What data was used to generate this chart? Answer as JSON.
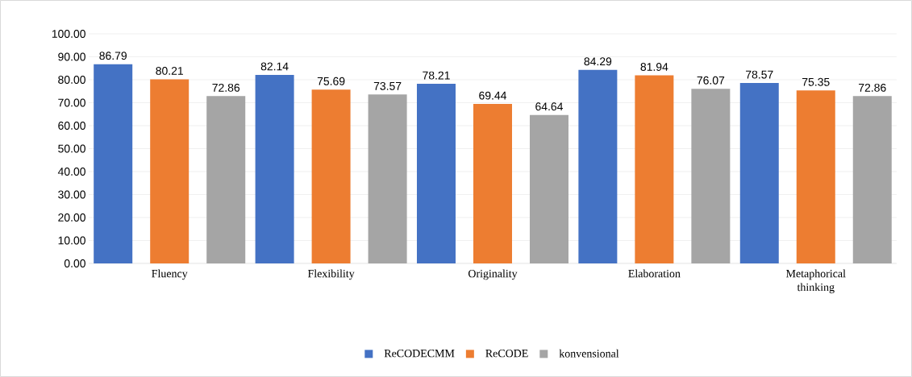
{
  "chart_data": {
    "type": "bar",
    "categories": [
      "Fluency",
      "Flexibility",
      "Originality",
      "Elaboration",
      "Metaphorical thinking"
    ],
    "series": [
      {
        "name": "ReCODECMM",
        "color": "#4472c4",
        "values": [
          86.79,
          82.14,
          78.21,
          84.29,
          78.57
        ]
      },
      {
        "name": "ReCODE",
        "color": "#ed7d31",
        "values": [
          80.21,
          75.69,
          69.44,
          81.94,
          75.35
        ]
      },
      {
        "name": "konvensional",
        "color": "#a5a5a5",
        "values": [
          72.86,
          73.57,
          64.64,
          76.07,
          72.86
        ]
      }
    ],
    "ylim": [
      0,
      100
    ],
    "yticks": [
      {
        "value": 0,
        "label": "0.00"
      },
      {
        "value": 10,
        "label": "10.00"
      },
      {
        "value": 20,
        "label": "20.00"
      },
      {
        "value": 30,
        "label": "30.00"
      },
      {
        "value": 40,
        "label": "40.00"
      },
      {
        "value": 50,
        "label": "50.00"
      },
      {
        "value": 60,
        "label": "60.00"
      },
      {
        "value": 70,
        "label": "70.00"
      },
      {
        "value": 80,
        "label": "80.00"
      },
      {
        "value": 90,
        "label": "90.00"
      },
      {
        "value": 100,
        "label": "100.00"
      }
    ],
    "grid": "y",
    "legend": "bottom",
    "data_labels": true
  }
}
